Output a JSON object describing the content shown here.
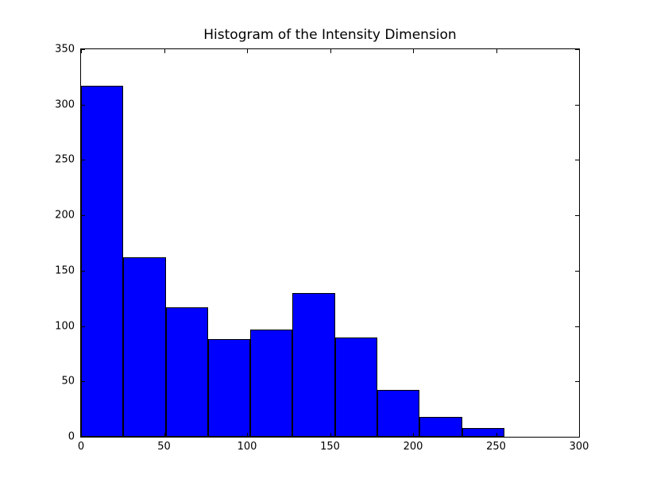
{
  "chart_data": {
    "type": "bar",
    "subtype": "histogram",
    "title": "Histogram of the Intensity Dimension",
    "xlabel": "",
    "ylabel": "",
    "bin_edges": [
      0,
      25.5,
      51,
      76.5,
      102,
      127.5,
      153,
      178.5,
      204,
      229.5,
      255
    ],
    "values": [
      317,
      162,
      117,
      88,
      97,
      130,
      90,
      42,
      18,
      8
    ],
    "xlim": [
      0,
      300
    ],
    "ylim": [
      0,
      350
    ],
    "xticks": [
      0,
      50,
      100,
      150,
      200,
      250,
      300
    ],
    "yticks": [
      0,
      50,
      100,
      150,
      200,
      250,
      300,
      350
    ],
    "grid": false,
    "legend_position": "none",
    "bar_color": "#0000ff",
    "bar_edge_color": "#000000",
    "frame_color": "#000000",
    "background_color": "#ffffff",
    "tick_direction": "in"
  }
}
